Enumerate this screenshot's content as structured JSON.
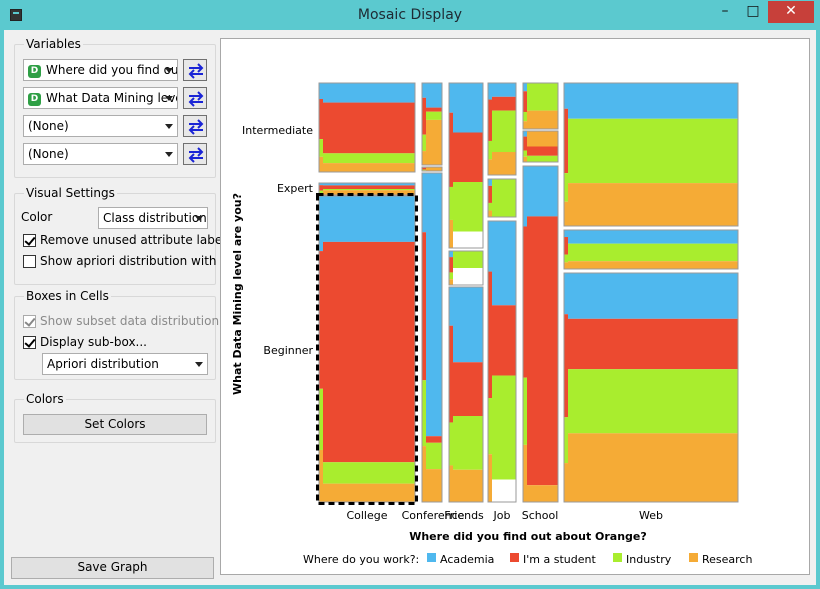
{
  "window": {
    "title": "Mosaic Display",
    "minimize": "–",
    "maximize": "□",
    "close": "✕"
  },
  "colors": {
    "academia": "#4fb8ee",
    "student": "#ec4a30",
    "industry": "#a9ed2e",
    "research": "#f5ab36",
    "accent": "#5bc9cf"
  },
  "variables": {
    "title": "Variables",
    "combos": [
      "Where did you find out",
      "What Data Mining level",
      "(None)",
      "(None)"
    ],
    "badge": "D",
    "swap_icon": "swap-arrows-icon"
  },
  "visual": {
    "title": "Visual Settings",
    "color_label": "Color",
    "color_value": "Class distribution",
    "remove_unused": "Remove unused attribute labels",
    "remove_unused_checked": true,
    "apriori_lines": "Show apriori distribution with lines",
    "apriori_lines_checked": false
  },
  "boxes": {
    "title": "Boxes in Cells",
    "subset": "Show subset data distribution",
    "subset_checked": true,
    "subset_enabled": false,
    "subbox": "Display sub-box...",
    "subbox_checked": true,
    "subbox_value": "Apriori distribution"
  },
  "colors_group": {
    "title": "Colors",
    "button": "Set Colors"
  },
  "save_button": "Save Graph",
  "chart_data": {
    "type": "mosaic",
    "xlabel": "Where did you find out about Orange?",
    "ylabel": "What Data Mining level are you?",
    "x_categories": [
      "College",
      "Conference",
      "Friends",
      "Job",
      "School",
      "Web"
    ],
    "y_categories": [
      "Intermediate",
      "Expert",
      "Beginner"
    ],
    "legend_title": "Where do you work?:",
    "legend": [
      "Academia",
      "I'm a student",
      "Industry",
      "Research"
    ],
    "column_widths": [
      0.233,
      0.048,
      0.08,
      0.068,
      0.085,
      0.42
    ],
    "cells": {
      "College": {
        "Intermediate": 0.245,
        "Expert": 0.03,
        "Beginner": 0.725
      },
      "Conference": {
        "Intermediate": 0.21,
        "Expert": 0.01,
        "Beginner": 0.78
      },
      "Friends": {
        "Intermediate": 0.42,
        "Expert": 0.0,
        "Beginner": 0.58
      },
      "Job": {
        "Intermediate": 0.24,
        "Expert": 0.1,
        "Beginner": 0.66
      },
      "School": {
        "Intermediate": 0.19,
        "Expert": 0.08,
        "Beginner": 0.73
      },
      "Web": {
        "Intermediate": 0.245,
        "Expert": 0.1,
        "Beginner": 0.655
      }
    },
    "selected_cell": {
      "x": "College",
      "y": "Beginner"
    },
    "legend_position": "bottom"
  }
}
